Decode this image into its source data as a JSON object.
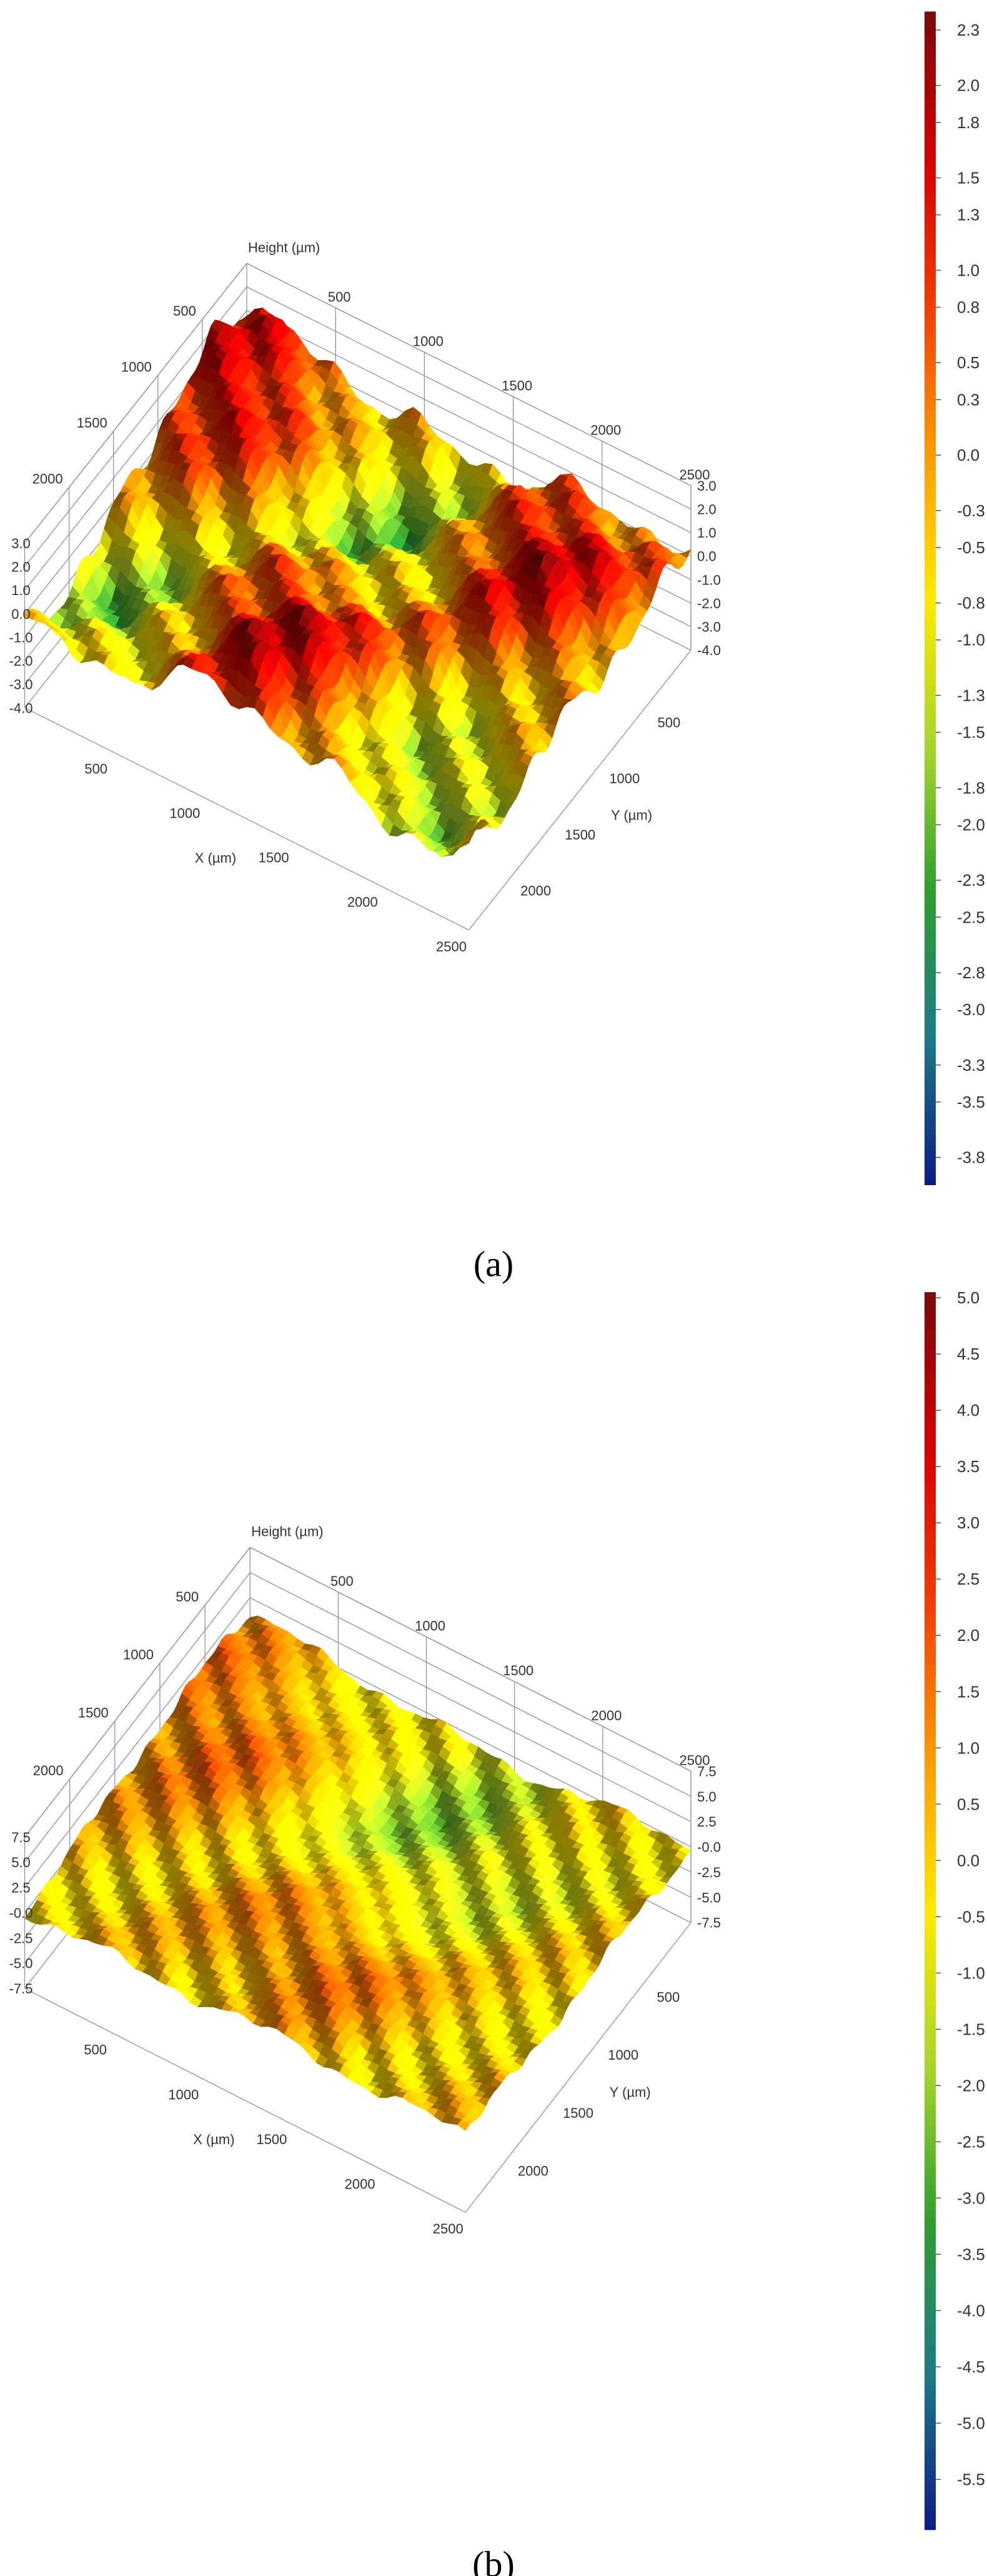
{
  "chart_data": [
    {
      "type": "surface",
      "panel_label": "(a)",
      "z_label": "Height (µm)",
      "x_label": "X (µm)",
      "y_label": "Y (µm)",
      "xlim": [
        0,
        2500
      ],
      "xticks": [
        500,
        1000,
        1500,
        2000,
        2500
      ],
      "ylim": [
        0,
        2500
      ],
      "yticks": [
        500,
        1000,
        1500,
        2000
      ],
      "zlim": [
        -4,
        3
      ],
      "zticks": [
        {
          "value": 3,
          "label": "3.0"
        },
        {
          "value": 2,
          "label": "2.0"
        },
        {
          "value": 1,
          "label": "1.0"
        },
        {
          "value": 0,
          "label": "0.0"
        },
        {
          "value": -1,
          "label": "-1.0"
        },
        {
          "value": -2,
          "label": "-2.0"
        },
        {
          "value": -3,
          "label": "-3.0"
        },
        {
          "value": -4,
          "label": "-4.0"
        }
      ],
      "colorbar": {
        "lim": [
          -3.95,
          2.4
        ],
        "ticks": [
          2.3,
          {
            "value": 2,
            "label": "2.0"
          },
          1.8,
          1.5,
          1.3,
          {
            "value": 1,
            "label": "1.0"
          },
          0.8,
          0.5,
          0.3,
          {
            "value": 0,
            "label": "0.0"
          },
          -0.3,
          -0.5,
          -0.8,
          {
            "value": -1,
            "label": "-1.0"
          },
          -1.3,
          -1.5,
          -1.8,
          {
            "value": -2,
            "label": "-2.0"
          },
          -2.3,
          -2.5,
          -2.8,
          {
            "value": -3,
            "label": "-3.0"
          },
          -3.3,
          -3.5,
          -3.8
        ]
      },
      "colormap": [
        "#7a0a0a",
        "#d40000",
        "#f03c00",
        "#ff9a00",
        "#ffe800",
        "#a8d62a",
        "#2f9e2f",
        "#1d7a86",
        "#0c1a86"
      ]
    },
    {
      "type": "surface",
      "panel_label": "(b)",
      "z_label": "Height (µm)",
      "x_label": "X (µm)",
      "y_label": "Y (µm)",
      "xlim": [
        0,
        2500
      ],
      "xticks": [
        500,
        1000,
        1500,
        2000,
        2500
      ],
      "ylim": [
        0,
        2500
      ],
      "yticks": [
        500,
        1000,
        1500,
        2000
      ],
      "zlim": [
        -7.5,
        7.5
      ],
      "zticks": [
        7.5,
        {
          "value": 5,
          "label": "5.0"
        },
        2.5,
        {
          "value": 0,
          "label": "-0.0"
        },
        -2.5,
        {
          "value": -5,
          "label": "-5.0"
        },
        -7.5
      ],
      "colorbar": {
        "lim": [
          -5.95,
          5.05
        ],
        "ticks": [
          {
            "value": 5,
            "label": "5.0"
          },
          4.5,
          {
            "value": 4,
            "label": "4.0"
          },
          3.5,
          {
            "value": 3,
            "label": "3.0"
          },
          2.5,
          {
            "value": 2,
            "label": "2.0"
          },
          1.5,
          {
            "value": 1,
            "label": "1.0"
          },
          0.5,
          {
            "value": 0,
            "label": "0.0"
          },
          -0.5,
          {
            "value": -1,
            "label": "-1.0"
          },
          -1.5,
          {
            "value": -2,
            "label": "-2.0"
          },
          -2.5,
          {
            "value": -3,
            "label": "-3.0"
          },
          -3.5,
          {
            "value": -4,
            "label": "-4.0"
          },
          -4.5,
          {
            "value": -5,
            "label": "-5.0"
          },
          -5.5
        ]
      },
      "colormap": [
        "#7a0a0a",
        "#d40000",
        "#f03c00",
        "#ff9a00",
        "#ffe800",
        "#a8d62a",
        "#2f9e2f",
        "#1d7a86",
        "#0c1a86"
      ]
    }
  ]
}
